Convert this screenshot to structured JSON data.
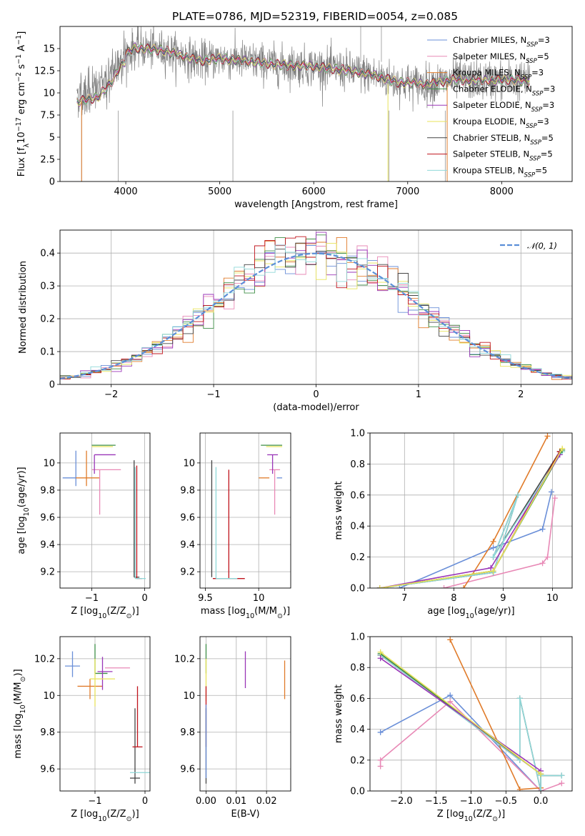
{
  "figure": {
    "title": "PLATE=0786, MJD=52319, FIBERID=0054, z=0.085"
  },
  "series": [
    {
      "key": "chab_miles",
      "label": "Chabrier MILES, N$_{SSP}$=3",
      "text": "Chabrier MILES, N",
      "sub": "SSP",
      "tail": "=3",
      "color": "#6a8fd8"
    },
    {
      "key": "salp_miles",
      "label": "Salpeter MILES, N$_{SSP}$=5",
      "text": "Salpeter MILES, N",
      "sub": "SSP",
      "tail": "=5",
      "color": "#e889b6"
    },
    {
      "key": "krou_miles",
      "label": "Kroupa MILES, N$_{SSP}$=3",
      "text": "Kroupa MILES, N",
      "sub": "SSP",
      "tail": "=3",
      "color": "#e07b2a"
    },
    {
      "key": "chab_elodie",
      "label": "Chabrier ELODIE, N$_{SSP}$=3",
      "text": "Chabrier ELODIE, N",
      "sub": "SSP",
      "tail": "=3",
      "color": "#3f8f47"
    },
    {
      "key": "salp_elodie",
      "label": "Salpeter ELODIE, N$_{SSP}$=3",
      "text": "Salpeter ELODIE, N",
      "sub": "SSP",
      "tail": "=3",
      "color": "#9a36b8"
    },
    {
      "key": "krou_elodie",
      "label": "Kroupa ELODIE, N$_{SSP}$=3",
      "text": "Kroupa ELODIE, N",
      "sub": "SSP",
      "tail": "=3",
      "color": "#e8e35a"
    },
    {
      "key": "chab_stelib",
      "label": "Chabrier STELIB, N$_{SSP}$=5",
      "text": "Chabrier STELIB, N",
      "sub": "SSP",
      "tail": "=5",
      "color": "#444444"
    },
    {
      "key": "salp_stelib",
      "label": "Salpeter STELIB, N$_{SSP}$=5",
      "text": "Salpeter STELIB, N",
      "sub": "SSP",
      "tail": "=5",
      "color": "#c0141d"
    },
    {
      "key": "krou_stelib",
      "label": "Kroupa STELIB, N$_{SSP}$=5",
      "text": "Kroupa STELIB, N",
      "sub": "SSP",
      "tail": "=5",
      "color": "#8fd8d8"
    }
  ],
  "chart_data": [
    {
      "id": "spectrum",
      "type": "line",
      "xlabel": "wavelength [Angstrom, rest frame]",
      "ylabel": "Flux [f$_\\lambda$10$^{-17}$ erg cm$^{-2}$ s$^{-1}$ A$^{-1}$]",
      "xlim": [
        3300,
        8750
      ],
      "ylim": [
        0,
        17.5
      ],
      "xticks": [
        4000,
        5000,
        6000,
        7000,
        8000
      ],
      "yticks": [
        0.0,
        2.5,
        5.0,
        7.5,
        10.0,
        12.5,
        15.0
      ],
      "data_color": "#808080",
      "legend": "top-right",
      "continuum": [
        [
          3480,
          9.8
        ],
        [
          3700,
          10.3
        ],
        [
          3850,
          12.0
        ],
        [
          3950,
          14.0
        ],
        [
          4100,
          15.1
        ],
        [
          4400,
          14.8
        ],
        [
          4800,
          13.6
        ],
        [
          5000,
          13.9
        ],
        [
          5300,
          13.6
        ],
        [
          5600,
          13.2
        ],
        [
          6000,
          13.0
        ],
        [
          6300,
          12.6
        ],
        [
          6600,
          12.1
        ],
        [
          6900,
          11.2
        ],
        [
          7200,
          11.0
        ],
        [
          7500,
          11.5
        ],
        [
          7800,
          11.4
        ],
        [
          8100,
          11.5
        ],
        [
          8300,
          11.3
        ]
      ],
      "data_range": [
        3480,
        8300
      ]
    },
    {
      "id": "residuals",
      "type": "histogram",
      "xlabel": "(data-model)/error",
      "ylabel": "Normed distribution",
      "xlim": [
        -2.5,
        2.5
      ],
      "ylim": [
        0,
        0.47
      ],
      "xticks": [
        -2,
        -1,
        0,
        1,
        2
      ],
      "yticks": [
        0.0,
        0.1,
        0.2,
        0.3,
        0.4
      ],
      "bin_width": 0.1,
      "reference": {
        "name": "$\\mathcal{N}(0,1)$",
        "text": "𝒩(0, 1)",
        "color": "#5b8fd8",
        "style": "dashed"
      },
      "legend": "top-right"
    },
    {
      "id": "age_vs_Z",
      "type": "errorbar",
      "xlabel": "Z [log$_{10}$(Z/Z$_\\odot$)]",
      "ylabel": "age  [log$_{10}$(age/yr)]",
      "xlim": [
        -1.6,
        0.1
      ],
      "ylim": [
        9.08,
        10.22
      ],
      "xticks": [
        -1,
        0
      ],
      "yticks": [
        9.2,
        9.4,
        9.6,
        9.8,
        10.0
      ],
      "points": [
        {
          "s": "chab_miles",
          "x": -1.3,
          "xerr": [
            0.25,
            0.0
          ],
          "y": 9.89,
          "yerr": [
            0.06,
            0.2
          ]
        },
        {
          "s": "krou_miles",
          "x": -1.1,
          "xerr": [
            0.2,
            0.25
          ],
          "y": 9.89,
          "yerr": [
            0.06,
            0.2
          ]
        },
        {
          "s": "salp_miles",
          "x": -0.85,
          "xerr": [
            0.15,
            0.4
          ],
          "y": 9.95,
          "yerr": [
            0.33,
            0.0
          ]
        },
        {
          "s": "chab_elodie",
          "x": -0.95,
          "xerr": [
            0.05,
            0.4
          ],
          "y": 10.13,
          "yerr": [
            0.0,
            0.0
          ]
        },
        {
          "s": "salp_elodie",
          "x": -0.95,
          "xerr": [
            0.0,
            0.4
          ],
          "y": 10.06,
          "yerr": [
            0.14,
            0.0
          ]
        },
        {
          "s": "krou_elodie",
          "x": -0.95,
          "xerr": [
            0.05,
            0.35
          ],
          "y": 10.12,
          "yerr": [
            0.0,
            0.0
          ]
        },
        {
          "s": "chab_stelib",
          "x": -0.2,
          "xerr": [
            0.0,
            0.1
          ],
          "y": 9.16,
          "yerr": [
            0.0,
            0.86
          ]
        },
        {
          "s": "salp_stelib",
          "x": -0.15,
          "xerr": [
            0.0,
            0.1
          ],
          "y": 9.15,
          "yerr": [
            0.0,
            0.83
          ]
        },
        {
          "s": "krou_stelib",
          "x": -0.18,
          "xerr": [
            0.0,
            0.2
          ],
          "y": 9.15,
          "yerr": [
            0.0,
            0.82
          ]
        }
      ]
    },
    {
      "id": "age_vs_mass",
      "type": "errorbar",
      "xlabel": "mass [log$_{10}$(M/M$_\\odot$)]",
      "ylabel": "",
      "xlim": [
        9.45,
        10.3
      ],
      "ylim": [
        9.08,
        10.22
      ],
      "xticks": [
        9.5,
        10.0
      ],
      "yticks": [
        9.2,
        9.4,
        9.6,
        9.8,
        10.0
      ],
      "points": [
        {
          "s": "chab_miles",
          "x": 10.22,
          "xerr": [
            0.05,
            0.0
          ],
          "y": 9.89,
          "yerr": [
            0.0,
            0.0
          ]
        },
        {
          "s": "krou_miles",
          "x": 10.05,
          "xerr": [
            0.05,
            0.05
          ],
          "y": 9.89,
          "yerr": [
            0.0,
            0.0
          ]
        },
        {
          "s": "salp_miles",
          "x": 10.15,
          "xerr": [
            0.05,
            0.05
          ],
          "y": 9.95,
          "yerr": [
            0.33,
            0.0
          ]
        },
        {
          "s": "chab_elodie",
          "x": 10.12,
          "xerr": [
            0.1,
            0.1
          ],
          "y": 10.13,
          "yerr": [
            0.0,
            0.0
          ]
        },
        {
          "s": "salp_elodie",
          "x": 10.13,
          "xerr": [
            0.05,
            0.05
          ],
          "y": 10.06,
          "yerr": [
            0.14,
            0.0
          ]
        },
        {
          "s": "krou_elodie",
          "x": 10.12,
          "xerr": [
            0.05,
            0.1
          ],
          "y": 10.12,
          "yerr": [
            0.0,
            0.0
          ]
        },
        {
          "s": "chab_stelib",
          "x": 9.56,
          "xerr": [
            0.0,
            0.0
          ],
          "y": 9.16,
          "yerr": [
            0.0,
            0.86
          ]
        },
        {
          "s": "salp_stelib",
          "x": 9.72,
          "xerr": [
            0.15,
            0.15
          ],
          "y": 9.15,
          "yerr": [
            0.0,
            0.8
          ]
        },
        {
          "s": "krou_stelib",
          "x": 9.6,
          "xerr": [
            0.0,
            0.2
          ],
          "y": 9.15,
          "yerr": [
            0.0,
            0.82
          ]
        }
      ]
    },
    {
      "id": "weight_vs_age",
      "type": "line",
      "xlabel": "age  [log$_{10}$(age/yr)]",
      "ylabel": "mass weight",
      "xlim": [
        6.3,
        10.4
      ],
      "ylim": [
        0,
        1.0
      ],
      "xticks": [
        7,
        8,
        9,
        10
      ],
      "yticks": [
        0.0,
        0.2,
        0.4,
        0.6,
        0.8,
        1.0
      ],
      "lines": [
        {
          "s": "chab_miles",
          "x": [
            6.9,
            8.8,
            9.8,
            9.98
          ],
          "y": [
            0.0,
            0.26,
            0.38,
            0.62
          ]
        },
        {
          "s": "salp_miles",
          "x": [
            7.8,
            9.8,
            9.9,
            10.05
          ],
          "y": [
            0.0,
            0.16,
            0.2,
            0.58
          ]
        },
        {
          "s": "krou_miles",
          "x": [
            8.2,
            8.8,
            9.9
          ],
          "y": [
            0.0,
            0.3,
            0.98
          ]
        },
        {
          "s": "chab_stelib",
          "x": [
            6.5,
            8.8,
            9.3,
            8.8,
            10.15
          ],
          "y": [
            0.0,
            0.1,
            0.6,
            0.2,
            0.88
          ]
        },
        {
          "s": "salp_stelib",
          "x": [
            6.5,
            8.8,
            10.15
          ],
          "y": [
            0.0,
            0.11,
            0.88
          ]
        },
        {
          "s": "krou_stelib",
          "x": [
            6.5,
            8.8,
            9.3,
            8.8,
            10.2
          ],
          "y": [
            0.0,
            0.1,
            0.6,
            0.2,
            0.88
          ]
        },
        {
          "s": "chab_elodie",
          "x": [
            6.5,
            8.8,
            10.2
          ],
          "y": [
            0.0,
            0.11,
            0.89
          ]
        },
        {
          "s": "salp_elodie",
          "x": [
            6.5,
            8.75,
            10.15
          ],
          "y": [
            0.0,
            0.13,
            0.86
          ]
        },
        {
          "s": "krou_elodie",
          "x": [
            6.5,
            8.8,
            10.2
          ],
          "y": [
            0.0,
            0.11,
            0.9
          ]
        }
      ]
    },
    {
      "id": "mass_vs_Z",
      "type": "errorbar",
      "xlabel": "Z [log$_{10}$(Z/Z$_\\odot$)]",
      "ylabel": "mass [log$_{10}$(M/M$_\\odot$)]",
      "xlim": [
        -1.7,
        0.1
      ],
      "ylim": [
        9.48,
        10.32
      ],
      "xticks": [
        -1,
        0
      ],
      "yticks": [
        9.6,
        9.8,
        10.0,
        10.2
      ],
      "points": [
        {
          "s": "chab_miles",
          "x": -1.45,
          "xerr": [
            0.15,
            0.15
          ],
          "y": 10.16,
          "yerr": [
            0.06,
            0.08
          ]
        },
        {
          "s": "krou_miles",
          "x": -1.1,
          "xerr": [
            0.25,
            0.25
          ],
          "y": 10.05,
          "yerr": [
            0.07,
            0.04
          ]
        },
        {
          "s": "salp_miles",
          "x": -0.75,
          "xerr": [
            0.05,
            0.45
          ],
          "y": 10.15,
          "yerr": [
            0.0,
            0.0
          ]
        },
        {
          "s": "chab_elodie",
          "x": -1.0,
          "xerr": [
            0.0,
            0.25
          ],
          "y": 10.12,
          "yerr": [
            0.0,
            0.16
          ]
        },
        {
          "s": "salp_elodie",
          "x": -0.85,
          "xerr": [
            0.1,
            0.2
          ],
          "y": 10.13,
          "yerr": [
            0.1,
            0.08
          ]
        },
        {
          "s": "krou_elodie",
          "x": -1.0,
          "xerr": [
            0.1,
            0.4
          ],
          "y": 10.09,
          "yerr": [
            0.15,
            0.11
          ]
        },
        {
          "s": "chab_stelib",
          "x": -0.2,
          "xerr": [
            0.1,
            0.1
          ],
          "y": 9.55,
          "yerr": [
            0.03,
            0.38
          ]
        },
        {
          "s": "salp_stelib",
          "x": -0.15,
          "xerr": [
            0.1,
            0.1
          ],
          "y": 9.72,
          "yerr": [
            0.0,
            0.33
          ]
        },
        {
          "s": "krou_stelib",
          "x": -0.1,
          "xerr": [
            0.2,
            0.2
          ],
          "y": 9.58,
          "yerr": [
            0.0,
            0.0
          ]
        }
      ]
    },
    {
      "id": "mass_vs_ebv",
      "type": "errorbar",
      "xlabel": "E(B-V)",
      "ylabel": "",
      "xlim": [
        -0.002,
        0.028
      ],
      "ylim": [
        9.48,
        10.32
      ],
      "xticks": [
        0.0,
        0.01,
        0.02
      ],
      "xticklabels": [
        "0.00",
        "0.01",
        "0.02"
      ],
      "yticks": [
        9.6,
        9.8,
        10.0,
        10.2
      ],
      "points": [
        {
          "s": "chab_elodie",
          "x": 0.0,
          "xerr": [
            0,
            0
          ],
          "y": 10.12,
          "yerr": [
            0.0,
            0.16
          ]
        },
        {
          "s": "krou_elodie",
          "x": 0.0,
          "xerr": [
            0,
            0
          ],
          "y": 10.09,
          "yerr": [
            0.12,
            0.11
          ]
        },
        {
          "s": "salp_stelib",
          "x": 0.0,
          "xerr": [
            0,
            0
          ],
          "y": 9.72,
          "yerr": [
            0.0,
            0.33
          ]
        },
        {
          "s": "chab_stelib",
          "x": 0.0,
          "xerr": [
            0,
            0
          ],
          "y": 9.55,
          "yerr": [
            0.03,
            0.38
          ]
        },
        {
          "s": "chab_miles",
          "x": 0.0,
          "xerr": [
            0,
            0
          ],
          "y": 9.75,
          "yerr": [
            0.2,
            0.2
          ]
        },
        {
          "s": "salp_elodie",
          "x": 0.013,
          "xerr": [
            0,
            0
          ],
          "y": 10.13,
          "yerr": [
            0.09,
            0.11
          ]
        },
        {
          "s": "krou_miles",
          "x": 0.026,
          "xerr": [
            0,
            0
          ],
          "y": 10.05,
          "yerr": [
            0.07,
            0.14
          ]
        },
        {
          "s": "krou_stelib",
          "x": 0.0,
          "xerr": [
            0,
            0
          ],
          "y": 9.58,
          "yerr": [
            0.0,
            0.0
          ]
        }
      ]
    },
    {
      "id": "weight_vs_Z",
      "type": "line",
      "xlabel": "Z [log$_{10}$(Z/Z$_\\odot$)]",
      "ylabel": "mass weight",
      "xlim": [
        -2.45,
        0.45
      ],
      "ylim": [
        0,
        1.0
      ],
      "xticks": [
        -2.0,
        -1.5,
        -1.0,
        -0.5,
        0.0
      ],
      "xticklabels": [
        "−2.0",
        "−1.5",
        "−1.0",
        "−0.5",
        "0.0"
      ],
      "yticks": [
        0.0,
        0.2,
        0.4,
        0.6,
        0.8,
        1.0
      ],
      "lines": [
        {
          "s": "chab_miles",
          "x": [
            -2.3,
            -1.3,
            0.0
          ],
          "y": [
            0.38,
            0.62,
            0.0
          ]
        },
        {
          "s": "salp_miles",
          "x": [
            -2.3,
            -2.3,
            -1.3,
            0.0,
            0.3
          ],
          "y": [
            0.16,
            0.2,
            0.58,
            0.0,
            0.05
          ]
        },
        {
          "s": "krou_miles",
          "x": [
            -1.3,
            -0.3,
            0.0
          ],
          "y": [
            0.98,
            0.01,
            0.02
          ]
        },
        {
          "s": "chab_stelib",
          "x": [
            -2.3,
            -0.3,
            -0.3,
            0.0,
            0.0,
            0.3
          ],
          "y": [
            0.88,
            0.2,
            0.6,
            0.0,
            0.1,
            0.1
          ]
        },
        {
          "s": "salp_stelib",
          "x": [
            -2.3,
            0.0
          ],
          "y": [
            0.88,
            0.11
          ]
        },
        {
          "s": "krou_stelib",
          "x": [
            -2.3,
            -0.3,
            -0.3,
            0.0,
            0.0,
            0.3
          ],
          "y": [
            0.88,
            0.2,
            0.6,
            0.0,
            0.1,
            0.1
          ]
        },
        {
          "s": "chab_elodie",
          "x": [
            -2.3,
            0.0
          ],
          "y": [
            0.89,
            0.11
          ]
        },
        {
          "s": "salp_elodie",
          "x": [
            -2.3,
            0.0
          ],
          "y": [
            0.86,
            0.13
          ]
        },
        {
          "s": "krou_elodie",
          "x": [
            -2.3,
            0.0
          ],
          "y": [
            0.9,
            0.11
          ]
        }
      ]
    }
  ]
}
